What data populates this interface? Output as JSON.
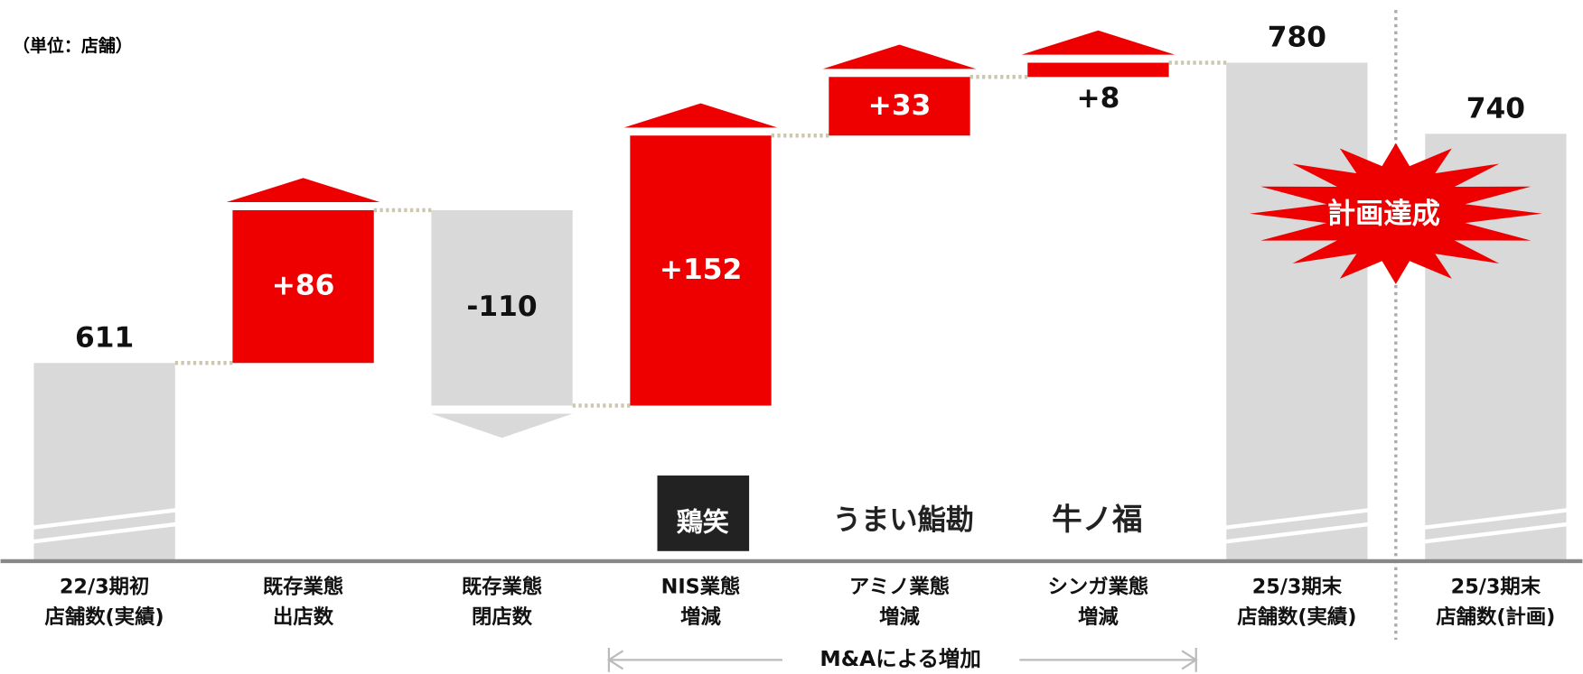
{
  "chart_data": {
    "type": "waterfall",
    "unit_note": "（単位：店舗）",
    "categories": [
      [
        "22/3期初",
        "店舗数(実績)"
      ],
      [
        "既存業態",
        "出店数"
      ],
      [
        "既存業態",
        "閉店数"
      ],
      [
        "NIS業態",
        "増減"
      ],
      [
        "アミノ業態",
        "増減"
      ],
      [
        "シンガ業態",
        "増減"
      ],
      [
        "25/3期末",
        "店舗数(実績)"
      ],
      [
        "25/3期末",
        "店舗数(計画)"
      ]
    ],
    "kinds": [
      "total",
      "delta",
      "delta",
      "delta",
      "delta",
      "delta",
      "total",
      "total"
    ],
    "values": [
      611,
      86,
      -110,
      152,
      33,
      8,
      780,
      740
    ],
    "value_labels": [
      "611",
      "+86",
      "-110",
      "+152",
      "+33",
      "+8",
      "780",
      "740"
    ],
    "colors": {
      "increase": "#ee0000",
      "decrease": "#d9d9d9",
      "total": "#d9d9d9"
    },
    "ylim": [
      500,
      800
    ],
    "axis_break": true,
    "brands": [
      "鶏笑",
      "うまい鮨勘",
      "牛ノ福"
    ],
    "badge": "計画達成",
    "bracket_label": "M&Aによる増加"
  }
}
